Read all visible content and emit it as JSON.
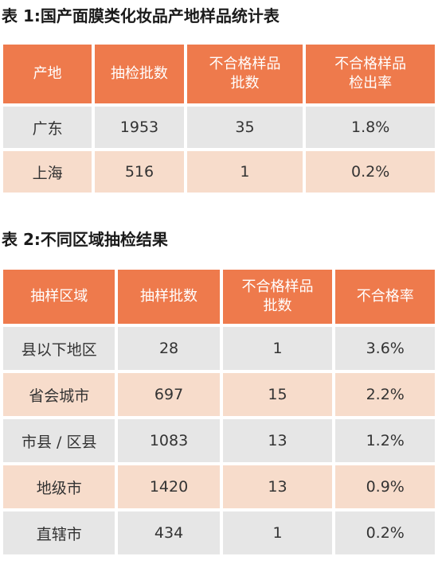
{
  "table1": {
    "title": "表 1:国产面膜类化妆品产地样品统计表",
    "headers": [
      [
        "产地"
      ],
      [
        "抽检批数"
      ],
      [
        "不合格样品",
        "批数"
      ],
      [
        "不合格样品",
        "检出率"
      ]
    ],
    "rows": [
      [
        "广东",
        "1953",
        "35",
        "1.8%"
      ],
      [
        "上海",
        "516",
        "1",
        "0.2%"
      ]
    ]
  },
  "table2": {
    "title": "表 2:不同区域抽检结果",
    "headers": [
      [
        "抽样区域"
      ],
      [
        "抽样批数"
      ],
      [
        "不合格样品",
        "批数"
      ],
      [
        "不合格率"
      ]
    ],
    "rows": [
      [
        "县以下地区",
        "28",
        "1",
        "3.6%"
      ],
      [
        "省会城市",
        "697",
        "15",
        "2.2%"
      ],
      [
        "市县 / 区县",
        "1083",
        "13",
        "1.2%"
      ],
      [
        "地级市",
        "1420",
        "13",
        "0.9%"
      ],
      [
        "直辖市",
        "434",
        "1",
        "0.2%"
      ]
    ]
  },
  "colors": {
    "header_bg": "#ee7a4c",
    "row_grey": "#e6e6e6",
    "row_peach": "#f7dccb"
  }
}
